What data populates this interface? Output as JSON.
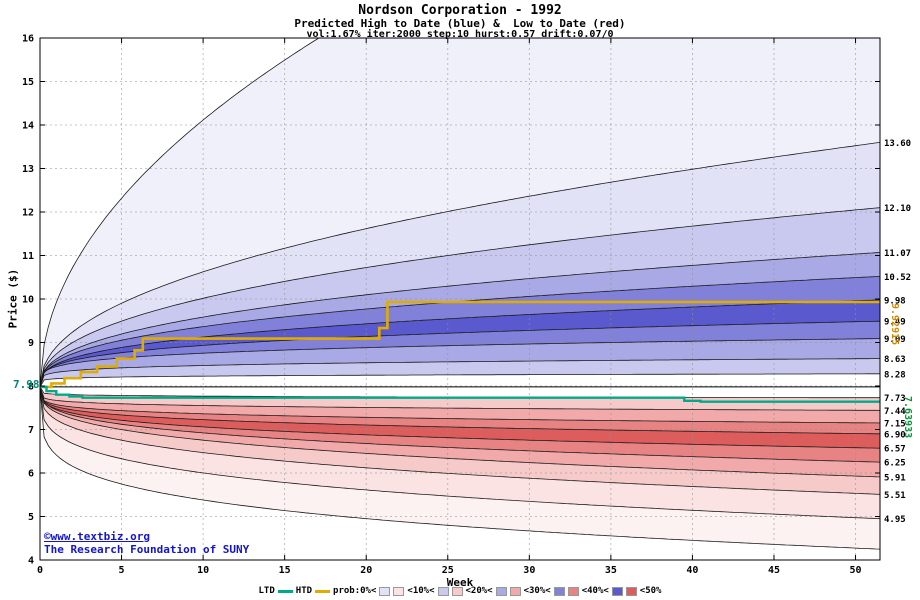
{
  "title": "Nordson Corporation - 1992",
  "subtitle": "Predicted High to Date (blue) &  Low to Date (red)",
  "params_line": "vol:1.67% iter:2000 step:10 hurst:0.57 drift:0.07/0",
  "watermark": {
    "line1": "©www.textbiz.org",
    "line2": "The Research Foundation of SUNY"
  },
  "start_label": "7.98",
  "annotations": {
    "htd_final_label": "9.92915",
    "ltd_final_label": "7.63933"
  },
  "axes": {
    "x_label": "Week",
    "y_label": "Price ($)",
    "x_ticks": [
      0,
      5,
      10,
      15,
      20,
      25,
      30,
      35,
      40,
      45,
      50
    ],
    "y_ticks": [
      4,
      5,
      6,
      7,
      8,
      9,
      10,
      11,
      12,
      13,
      14,
      15,
      16
    ],
    "x_range": [
      0,
      51.5
    ],
    "y_range": [
      4,
      16
    ],
    "grid": "dotted"
  },
  "legend": {
    "ltd_label": "LTD",
    "htd_label": "HTD",
    "prob_labels": [
      "prob:0%<",
      "<10%<",
      "<20%<",
      "<30%<",
      "<40%<",
      "<50%"
    ]
  },
  "colors": {
    "blue_shades": [
      "#f0f0fb",
      "#e2e2f7",
      "#c9c9f0",
      "#a9a9e6",
      "#8181da",
      "#5a5ace"
    ],
    "red_shades": [
      "#fdf2f2",
      "#fbe3e3",
      "#f7caca",
      "#f1a9a9",
      "#e88383",
      "#dd5c5c"
    ],
    "htd_line": "#e0ac00",
    "ltd_line": "#00aa88",
    "boundary": "#1a1a1a",
    "grid": "#909090",
    "reference": "#000000",
    "watermark": "#1414cc",
    "start_label": "#008877",
    "htd_annotation": "#cc8800",
    "ltd_annotation": "#009933"
  },
  "chart_data": {
    "type": "area",
    "description": "Monte Carlo fan chart: probability bands of predicted high-to-date (blue, upper fan) and low-to-date (red, lower fan) prices over 51 weeks, starting at 7.98",
    "start_week": 0,
    "end_week": 51.5,
    "start_price": 7.98,
    "reference_price": 7.98,
    "high_boundaries": [
      {
        "end": 21.9,
        "shape": 0.5,
        "label": ""
      },
      {
        "end": 13.6,
        "shape": 0.46,
        "label": "13.60"
      },
      {
        "end": 12.1,
        "shape": 0.43,
        "label": "12.10"
      },
      {
        "end": 11.07,
        "shape": 0.4,
        "label": "11.07"
      },
      {
        "end": 10.52,
        "shape": 0.37,
        "label": "10.52"
      },
      {
        "end": 9.98,
        "shape": 0.34,
        "label": "9.98"
      },
      {
        "end": 9.49,
        "shape": 0.28,
        "label": "9.49"
      },
      {
        "end": 9.09,
        "shape": 0.22,
        "label": "9.09"
      },
      {
        "end": 8.63,
        "shape": 0.17,
        "label": "8.63"
      },
      {
        "end": 8.28,
        "shape": 0.12,
        "label": "8.28"
      }
    ],
    "high_band_shades": [
      0,
      1,
      2,
      3,
      4,
      5,
      4,
      3,
      2
    ],
    "low_boundaries": [
      {
        "end": 7.73,
        "shape": 0.1,
        "label": "7.73"
      },
      {
        "end": 7.44,
        "shape": 0.14,
        "label": "7.44"
      },
      {
        "end": 7.15,
        "shape": 0.18,
        "label": "7.15"
      },
      {
        "end": 6.9,
        "shape": 0.22,
        "label": "6.90"
      },
      {
        "end": 6.57,
        "shape": 0.26,
        "label": "6.57"
      },
      {
        "end": 6.25,
        "shape": 0.3,
        "label": "6.25"
      },
      {
        "end": 5.91,
        "shape": 0.32,
        "label": "5.91"
      },
      {
        "end": 5.51,
        "shape": 0.3,
        "label": "5.51"
      },
      {
        "end": 4.95,
        "shape": 0.26,
        "label": "4.95"
      },
      {
        "end": 4.25,
        "shape": 0.22,
        "label": ""
      }
    ],
    "low_band_shades": [
      2,
      3,
      4,
      5,
      4,
      3,
      2,
      1,
      0
    ],
    "htd_line": [
      [
        0,
        7.98
      ],
      [
        0.7,
        7.98
      ],
      [
        0.7,
        8.06
      ],
      [
        1.5,
        8.06
      ],
      [
        1.5,
        8.18
      ],
      [
        2.5,
        8.18
      ],
      [
        2.5,
        8.32
      ],
      [
        3.5,
        8.32
      ],
      [
        3.5,
        8.45
      ],
      [
        4.7,
        8.45
      ],
      [
        4.7,
        8.63
      ],
      [
        5.8,
        8.63
      ],
      [
        5.8,
        8.82
      ],
      [
        6.3,
        8.82
      ],
      [
        6.3,
        9.09
      ],
      [
        20.8,
        9.09
      ],
      [
        20.8,
        9.33
      ],
      [
        21.3,
        9.33
      ],
      [
        21.3,
        9.93
      ],
      [
        51.5,
        9.93
      ]
    ],
    "htd_final": 9.92915,
    "ltd_line": [
      [
        0,
        7.98
      ],
      [
        0.4,
        7.98
      ],
      [
        0.4,
        7.88
      ],
      [
        1.0,
        7.88
      ],
      [
        1.0,
        7.8
      ],
      [
        1.8,
        7.8
      ],
      [
        1.8,
        7.76
      ],
      [
        2.6,
        7.76
      ],
      [
        2.6,
        7.73
      ],
      [
        39.5,
        7.73
      ],
      [
        39.5,
        7.66
      ],
      [
        40.5,
        7.66
      ],
      [
        40.5,
        7.64
      ],
      [
        51.5,
        7.64
      ]
    ],
    "ltd_final": 7.63933
  }
}
